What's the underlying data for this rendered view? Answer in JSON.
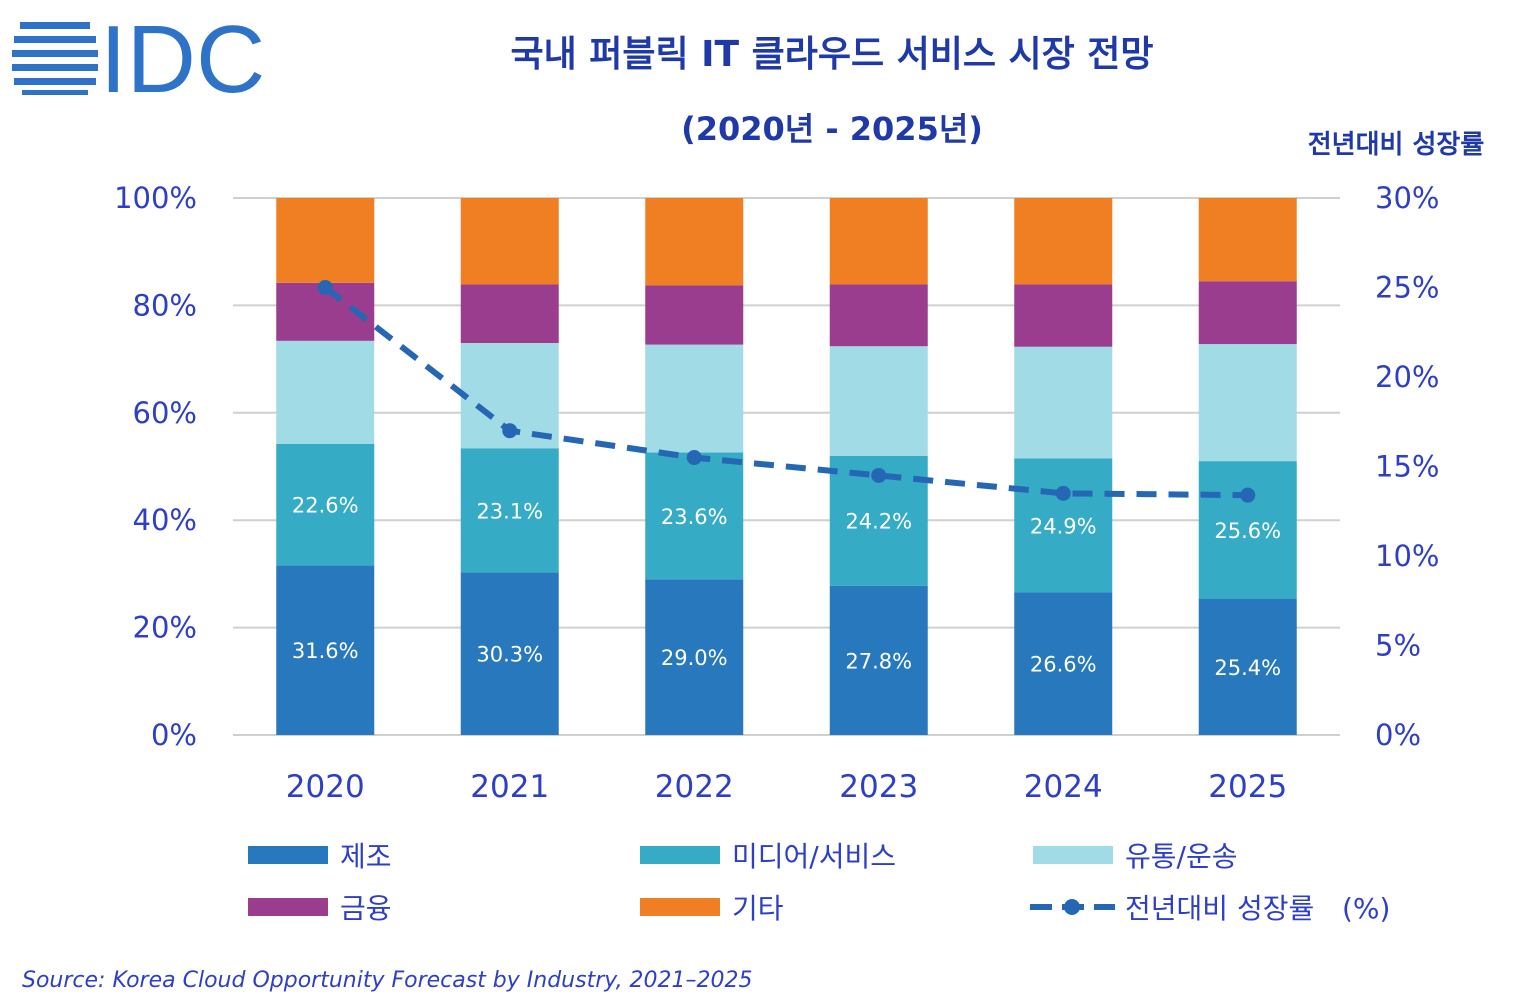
{
  "logo": {
    "text": "IDC"
  },
  "title": "국내 퍼블릭 IT 클라우드 서비스 시장 전망",
  "subtitle": "(2020년 - 2025년)",
  "source": "Source: Korea Cloud Opportunity Forecast by Industry, 2021–2025",
  "chart_data": {
    "type": "bar",
    "stacked": true,
    "categories": [
      "2020",
      "2021",
      "2022",
      "2023",
      "2024",
      "2025"
    ],
    "y_left": {
      "ticks": [
        "0%",
        "20%",
        "40%",
        "60%",
        "80%",
        "100%"
      ],
      "ylim": [
        0,
        100
      ]
    },
    "y_right": {
      "label": "전년대비 성장률",
      "ticks": [
        "0%",
        "5%",
        "10%",
        "15%",
        "20%",
        "25%",
        "30%"
      ],
      "ylim": [
        0,
        30
      ]
    },
    "series": [
      {
        "name": "제조",
        "color": "#2878bd",
        "values": [
          31.6,
          30.3,
          29.0,
          27.8,
          26.6,
          25.4
        ],
        "labels": [
          "31.6%",
          "30.3%",
          "29.0%",
          "27.8%",
          "26.6%",
          "25.4%"
        ]
      },
      {
        "name": "미디어/서비스",
        "color": "#35abc6",
        "values": [
          22.6,
          23.1,
          23.6,
          24.2,
          24.9,
          25.6
        ],
        "labels": [
          "22.6%",
          "23.1%",
          "23.6%",
          "24.2%",
          "24.9%",
          "25.6%"
        ]
      },
      {
        "name": "유통/운송",
        "color": "#a0dbe6",
        "values": [
          19.2,
          19.6,
          20.1,
          20.4,
          20.8,
          21.8
        ]
      },
      {
        "name": "금융",
        "color": "#9a3d8f",
        "values": [
          10.8,
          10.9,
          11.0,
          11.5,
          11.6,
          11.7
        ]
      },
      {
        "name": "기타",
        "color": "#f07e22",
        "values": [
          15.8,
          16.1,
          16.3,
          16.1,
          16.1,
          15.5
        ]
      }
    ],
    "line": {
      "name": "전년대비 성장률",
      "legend_unit": "(%)",
      "color": "#2566b5",
      "axis": "right",
      "style": "dashed",
      "values": [
        25.0,
        17.0,
        15.5,
        14.5,
        13.5,
        13.4
      ]
    },
    "legend_position": "bottom",
    "grid": true
  }
}
